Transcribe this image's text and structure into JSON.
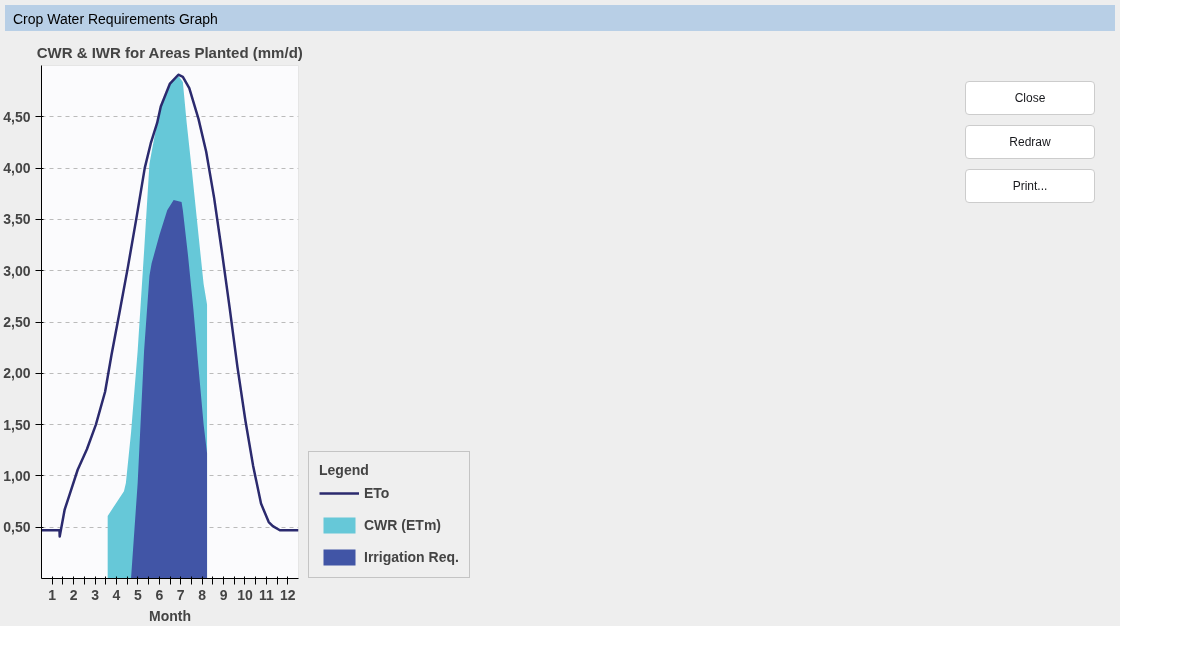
{
  "chart_data": {
    "type": "area",
    "title": "CWR & IWR for Areas Planted (mm/d)",
    "xlabel": "Month",
    "legend_title": "Legend",
    "legend": "right",
    "grid": "y",
    "xlim": [
      0.5,
      12.5
    ],
    "xticks": [
      1,
      {
        "value": 1.5,
        "label": null
      },
      2,
      {
        "value": 2.5,
        "label": null
      },
      3,
      {
        "value": 3.5,
        "label": null
      },
      4,
      {
        "value": 4.5,
        "label": null
      },
      5,
      {
        "value": 5.5,
        "label": null
      },
      6,
      {
        "value": 6.5,
        "label": null
      },
      7,
      {
        "value": 7.5,
        "label": null
      },
      8,
      {
        "value": 8.5,
        "label": null
      },
      9,
      {
        "value": 9.5,
        "label": null
      },
      10,
      {
        "value": 10.5,
        "label": null
      },
      11,
      {
        "value": 11.5,
        "label": null
      },
      12
    ],
    "ylim": [
      0,
      5
    ],
    "yticks": [
      {
        "value": 0.5,
        "label": "0,50"
      },
      {
        "value": 1.0,
        "label": "1,00"
      },
      {
        "value": 1.5,
        "label": "1,50"
      },
      {
        "value": 2.0,
        "label": "2,00"
      },
      {
        "value": 2.5,
        "label": "2,50"
      },
      {
        "value": 3.0,
        "label": "3,00"
      },
      {
        "value": 3.5,
        "label": "3,50"
      },
      {
        "value": 4.0,
        "label": "4,00"
      },
      {
        "value": 4.5,
        "label": "4,50"
      }
    ],
    "series": [
      {
        "name": "CWR (ETm)",
        "type": "area",
        "color": "#66c8d8",
        "x": [
          3.59,
          4.35,
          4.44,
          4.68,
          4.99,
          5.29,
          5.54,
          5.66,
          5.9,
          6.07,
          6.49,
          6.89,
          7.1,
          7.28,
          7.53,
          7.83,
          8.07,
          8.23
        ],
        "values": [
          0.61,
          0.85,
          0.93,
          1.42,
          2.22,
          3.19,
          4.04,
          4.18,
          4.44,
          4.6,
          4.82,
          4.9,
          4.84,
          4.44,
          3.96,
          3.35,
          2.87,
          2.67
        ]
      },
      {
        "name": "Irrigation Req.",
        "type": "area",
        "color": "#4155a6",
        "x": [
          4.68,
          4.99,
          5.29,
          5.54,
          5.64,
          6.01,
          6.37,
          6.67,
          7.04,
          7.1,
          7.34,
          7.59,
          7.83,
          8.07,
          8.23
        ],
        "values": [
          0.0,
          0.93,
          2.22,
          2.95,
          3.07,
          3.35,
          3.59,
          3.69,
          3.67,
          3.59,
          3.15,
          2.63,
          2.06,
          1.5,
          1.22
        ]
      },
      {
        "name": "ETo",
        "type": "line",
        "color": "#2b2a6e",
        "x": [
          0.5,
          1.34,
          1.35,
          1.58,
          1.8,
          2.19,
          2.62,
          3.04,
          3.47,
          3.77,
          4.14,
          4.53,
          4.93,
          5.32,
          5.6,
          5.9,
          6.07,
          6.49,
          6.89,
          7.1,
          7.4,
          7.83,
          8.19,
          8.56,
          8.92,
          9.29,
          9.65,
          10.02,
          10.38,
          10.75,
          11.11,
          11.3,
          11.63,
          12.5
        ],
        "values": [
          0.47,
          0.47,
          0.41,
          0.67,
          0.81,
          1.06,
          1.26,
          1.5,
          1.82,
          2.18,
          2.59,
          3.03,
          3.51,
          4.0,
          4.24,
          4.44,
          4.6,
          4.82,
          4.91,
          4.89,
          4.78,
          4.48,
          4.16,
          3.71,
          3.19,
          2.63,
          2.06,
          1.54,
          1.1,
          0.73,
          0.55,
          0.51,
          0.47,
          0.47
        ]
      }
    ],
    "annotations": [
      "Crop Water Requirements Graph",
      "Close",
      "Redraw",
      "Print..."
    ]
  }
}
